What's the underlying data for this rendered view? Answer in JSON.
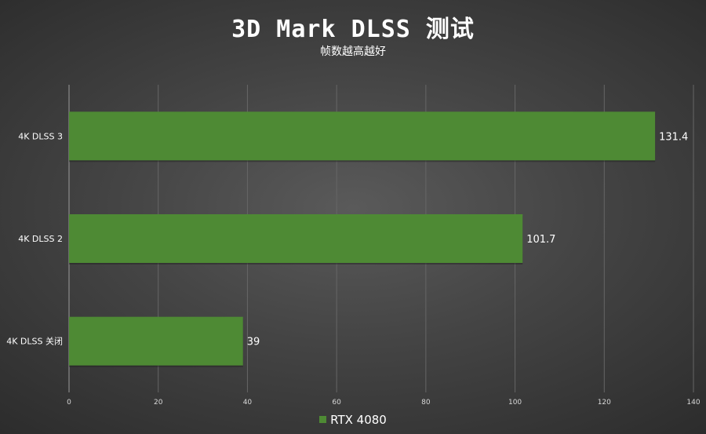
{
  "chart_data": {
    "type": "bar",
    "orientation": "horizontal",
    "title": "3D Mark DLSS 测试",
    "subtitle": "帧数越高越好",
    "categories": [
      "4K DLSS 3",
      "4K DLSS 2",
      "4K DLSS 关闭"
    ],
    "series": [
      {
        "name": "RTX 4080",
        "values": [
          131.4,
          101.7,
          39
        ],
        "color": "#4e8a34"
      }
    ],
    "data_labels": [
      "131.4",
      "101.7",
      "39"
    ],
    "xlim": [
      0,
      140
    ],
    "x_ticks": [
      0,
      20,
      40,
      60,
      80,
      100,
      120,
      140
    ],
    "grid": true,
    "legend_position": "bottom"
  }
}
